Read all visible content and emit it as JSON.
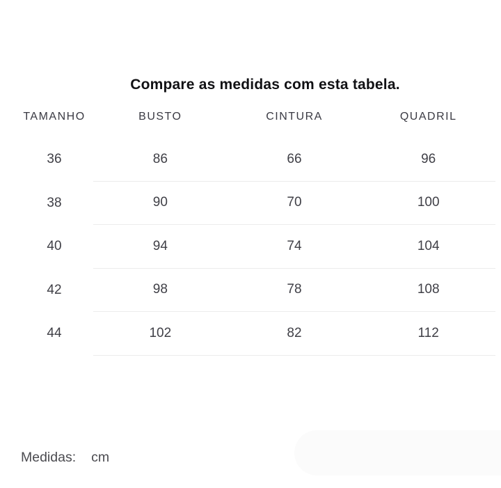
{
  "title": "Compare as medidas com esta tabela.",
  "table": {
    "columns": [
      "TAMANHO",
      "BUSTO",
      "CINTURA",
      "QUADRIL"
    ],
    "rows": [
      [
        "36",
        "86",
        "66",
        "96"
      ],
      [
        "38",
        "90",
        "70",
        "100"
      ],
      [
        "40",
        "94",
        "74",
        "104"
      ],
      [
        "42",
        "98",
        "78",
        "108"
      ],
      [
        "44",
        "102",
        "82",
        "112"
      ]
    ]
  },
  "footer": {
    "label": "Medidas:",
    "unit": "cm"
  },
  "colors": {
    "title": "#111114",
    "header": "#3a3a43",
    "cell": "#3f3f46",
    "divider": "#ececec",
    "footer": "#4b4b50",
    "panel": "#fbfbfb",
    "bg": "#ffffff"
  }
}
